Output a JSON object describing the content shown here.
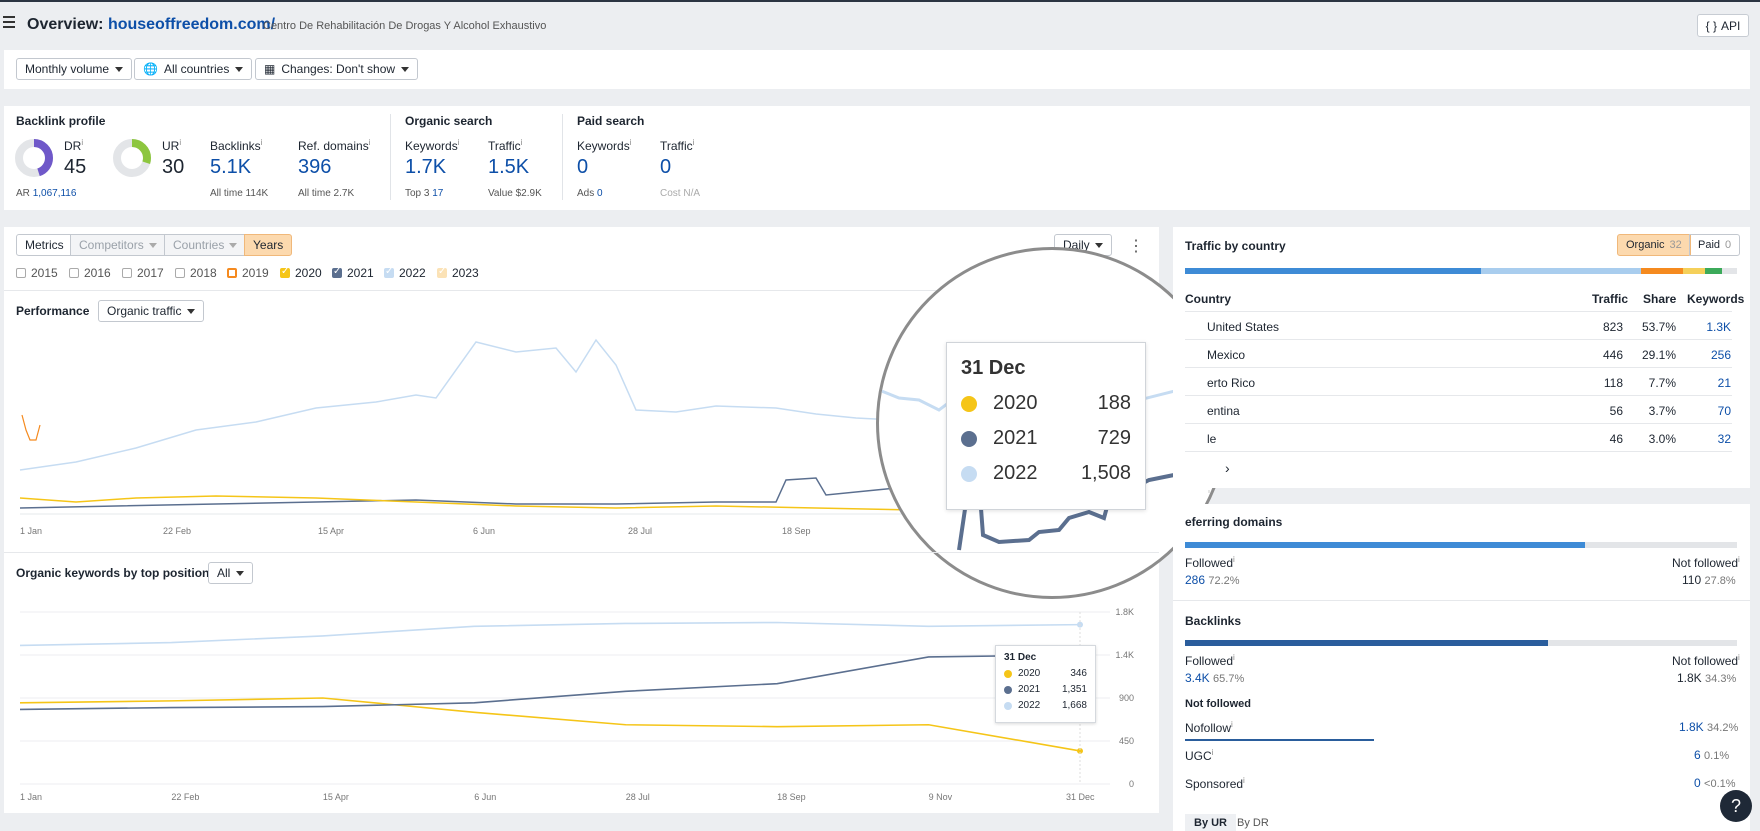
{
  "header": {
    "title_prefix": "Overview:",
    "domain": "houseoffreedom.com/",
    "subtitle": "Centro De Rehabilitación De Drogas Y Alcohol Exhaustivo",
    "api_label": "API"
  },
  "filters": {
    "volume": "Monthly volume",
    "countries": "All countries",
    "changes": "Changes: Don't show"
  },
  "backlink_profile": {
    "heading": "Backlink profile",
    "dr_label": "DR",
    "dr_value": "45",
    "ar_label": "AR",
    "ar_value": "1,067,116",
    "ur_label": "UR",
    "ur_value": "30",
    "backlinks_label": "Backlinks",
    "backlinks_value": "5.1K",
    "backlinks_alltime": "All time 114K",
    "refdomains_label": "Ref. domains",
    "refdomains_value": "396",
    "refdomains_alltime": "All time 2.7K"
  },
  "organic_search": {
    "heading": "Organic search",
    "keywords_label": "Keywords",
    "keywords_value": "1.7K",
    "top3_label": "Top 3",
    "top3_value": "17",
    "traffic_label": "Traffic",
    "traffic_value": "1.5K",
    "value_label": "Value",
    "value_value": "$2.9K"
  },
  "paid_search": {
    "heading": "Paid search",
    "keywords_label": "Keywords",
    "keywords_value": "0",
    "ads_label": "Ads",
    "ads_value": "0",
    "traffic_label": "Traffic",
    "traffic_value": "0",
    "cost_label": "Cost",
    "cost_value": "N/A"
  },
  "chart_tabs": {
    "metrics": "Metrics",
    "competitors": "Competitors",
    "countries": "Countries",
    "years": "Years",
    "interval": "Daily"
  },
  "years": [
    {
      "label": "2015",
      "checked": false,
      "color": "#aaaaaa"
    },
    {
      "label": "2016",
      "checked": false,
      "color": "#aaaaaa"
    },
    {
      "label": "2017",
      "checked": false,
      "color": "#aaaaaa"
    },
    {
      "label": "2018",
      "checked": false,
      "color": "#aaaaaa"
    },
    {
      "label": "2019",
      "checked": false,
      "color": "#f58a1f"
    },
    {
      "label": "2020",
      "checked": true,
      "color": "#f5c518"
    },
    {
      "label": "2021",
      "checked": true,
      "color": "#5b6f8f"
    },
    {
      "label": "2022",
      "checked": true,
      "color": "#c6dcf2"
    },
    {
      "label": "2023",
      "checked": true,
      "color": "#fbe2b6"
    }
  ],
  "performance": {
    "label": "Performance",
    "metric": "Organic traffic",
    "x_ticks": [
      "1 Jan",
      "22 Feb",
      "15 Apr",
      "6 Jun",
      "28 Jul",
      "18 Sep"
    ],
    "magnifier": {
      "date": "31 Dec",
      "rows": [
        {
          "year": "2020",
          "value": "188",
          "color": "#f5c518"
        },
        {
          "year": "2021",
          "value": "729",
          "color": "#5b6f8f"
        },
        {
          "year": "2022",
          "value": "1,508",
          "color": "#c6dcf2"
        }
      ]
    }
  },
  "keywords_chart": {
    "label": "Organic keywords by top position",
    "filter": "All",
    "x_ticks": [
      "1 Jan",
      "22 Feb",
      "15 Apr",
      "6 Jun",
      "28 Jul",
      "18 Sep",
      "9 Nov",
      "31 Dec"
    ],
    "y_ticks": [
      "1.8K",
      "1.4K",
      "900",
      "450",
      "0"
    ],
    "tooltip": {
      "date": "31 Dec",
      "rows": [
        {
          "year": "2020",
          "value": "346",
          "color": "#f5c518"
        },
        {
          "year": "2021",
          "value": "1,351",
          "color": "#5b6f8f"
        },
        {
          "year": "2022",
          "value": "1,668",
          "color": "#c6dcf2"
        }
      ]
    }
  },
  "chart_data": {
    "type": "line",
    "title": "Organic keywords by top position",
    "x": [
      "1 Jan",
      "22 Feb",
      "15 Apr",
      "6 Jun",
      "28 Jul",
      "18 Sep",
      "9 Nov",
      "31 Dec"
    ],
    "ylim": [
      0,
      1800
    ],
    "series": [
      {
        "name": "2020",
        "values": [
          850,
          870,
          900,
          750,
          620,
          600,
          620,
          346
        ]
      },
      {
        "name": "2021",
        "values": [
          780,
          800,
          810,
          850,
          970,
          1050,
          1330,
          1351
        ]
      },
      {
        "name": "2022",
        "values": [
          1450,
          1480,
          1550,
          1650,
          1680,
          1690,
          1650,
          1668
        ]
      }
    ]
  },
  "traffic_by_country": {
    "heading": "Traffic by country",
    "organic_label": "Organic",
    "organic_count": "32",
    "paid_label": "Paid",
    "paid_count": "0",
    "columns": [
      "Country",
      "Traffic",
      "Share",
      "Keywords"
    ],
    "rows": [
      {
        "country": "United States",
        "traffic": "823",
        "share": "53.7%",
        "keywords": "1.3K"
      },
      {
        "country": "Mexico",
        "traffic": "446",
        "share": "29.1%",
        "keywords": "256"
      },
      {
        "country": "erto Rico",
        "traffic": "118",
        "share": "7.7%",
        "keywords": "21"
      },
      {
        "country": "entina",
        "traffic": "56",
        "share": "3.7%",
        "keywords": "70"
      },
      {
        "country": "le",
        "traffic": "46",
        "share": "3.0%",
        "keywords": "32"
      }
    ]
  },
  "referring_domains": {
    "heading": "eferring domains",
    "followed_label": "Followed",
    "followed_value": "286",
    "followed_pct": "72.2%",
    "notfollowed_label": "Not followed",
    "notfollowed_value": "110",
    "notfollowed_pct": "27.8%"
  },
  "backlinks": {
    "heading": "Backlinks",
    "followed_label": "Followed",
    "followed_value": "3.4K",
    "followed_pct": "65.7%",
    "notfollowed_label": "Not followed",
    "notfollowed_value": "1.8K",
    "notfollowed_pct": "34.3%",
    "nf_heading": "Not followed",
    "nofollow_label": "Nofollow",
    "nofollow_value": "1.8K",
    "nofollow_pct": "34.2%",
    "ugc_label": "UGC",
    "ugc_value": "6",
    "ugc_pct": "0.1%",
    "sponsored_label": "Sponsored",
    "sponsored_value": "0",
    "sponsored_pct": "<0.1%"
  },
  "bottom_tabs": {
    "by_ur": "By UR",
    "by_dr": "By DR"
  },
  "help_label": "?"
}
